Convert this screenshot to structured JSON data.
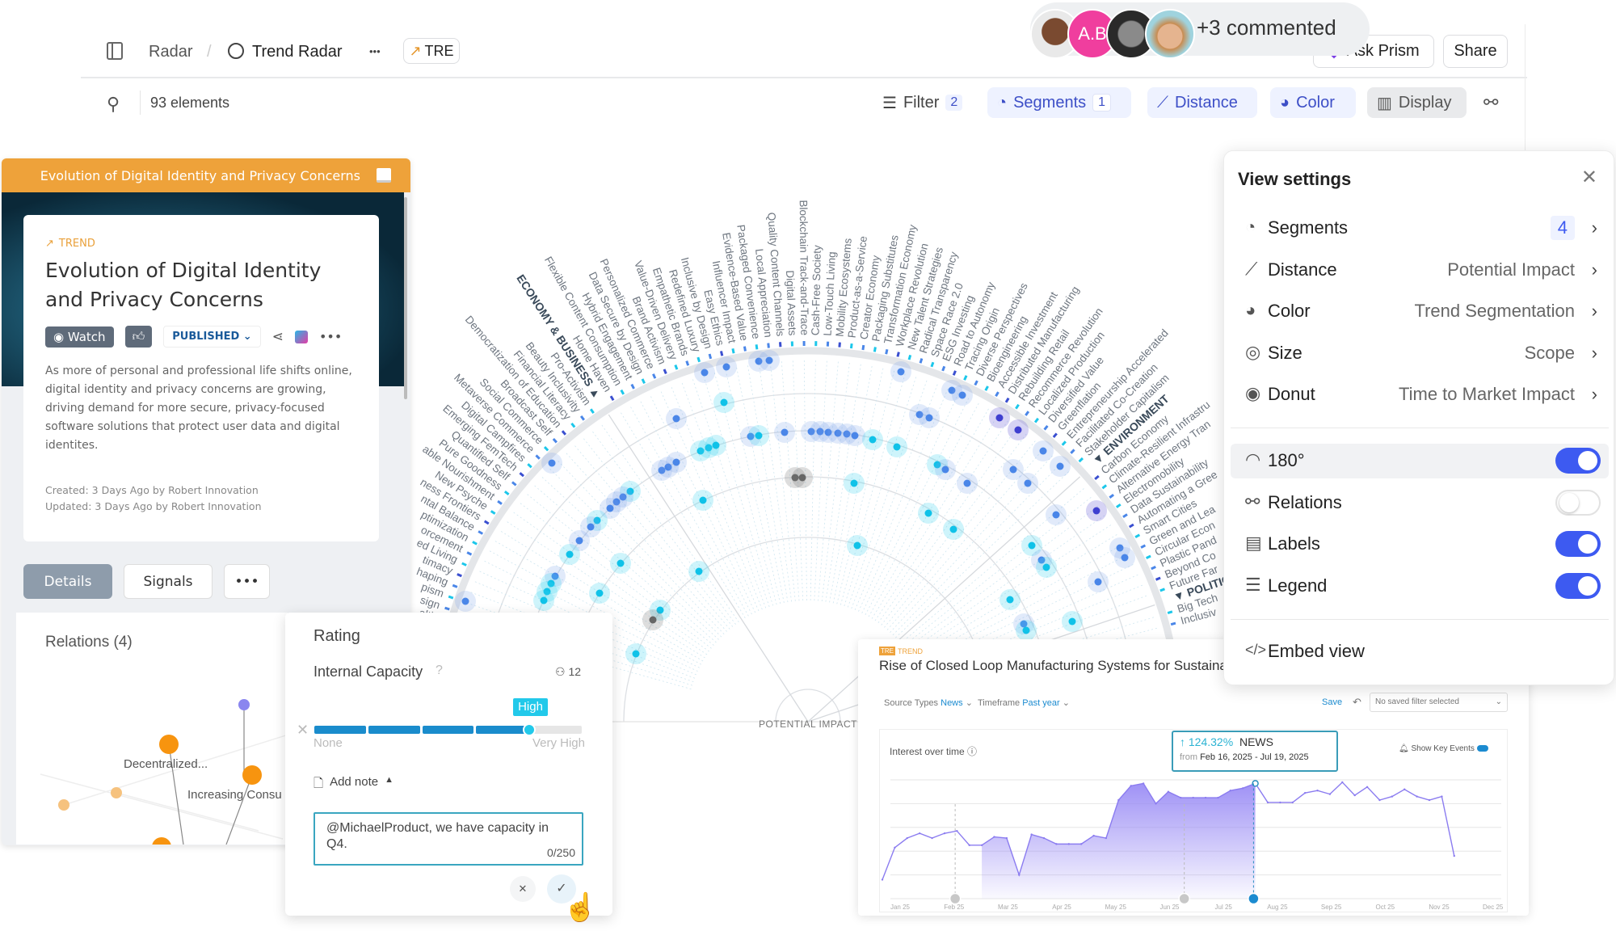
{
  "topbar": {
    "breadcrumb_root": "Radar",
    "separator": "/",
    "title": "Trend Radar",
    "more": "•••",
    "chip": "TRE",
    "avatar_initials": "A.B",
    "commented": "+3 commented",
    "ask_prism": "Ask Prism",
    "share": "Share"
  },
  "toolbar": {
    "count": "93 elements",
    "filter": "Filter",
    "filter_count": "2",
    "segments": "Segments",
    "segments_count": "1",
    "distance": "Distance",
    "color": "Color",
    "display": "Display"
  },
  "trend_card": {
    "header": "Evolution of Digital Identity and Privacy Concerns",
    "eyebrow": "TREND",
    "title": "Evolution of Digital Identity and Privacy Concerns",
    "watch": "Watch",
    "status": "PUBLISHED",
    "description": "As more of personal and professional life shifts online, digital identity and privacy concerns are growing, driving demand for more secure, privacy-focused software solutions that protect user data and digital identites.",
    "created": "Created: 3 Days Ago by Robert Innovation",
    "updated": "Updated: 3 Days Ago by Robert Innovation",
    "tabs": [
      "Details",
      "Signals",
      "•••"
    ]
  },
  "relations": {
    "title": "Relations (4)",
    "labels": [
      "Decentralized...",
      "Increasing Consu"
    ]
  },
  "rating": {
    "title": "Rating",
    "criterion": "Internal Capacity",
    "help": "?",
    "voters": "12",
    "level": "High",
    "level_index": 4,
    "levels_total": 5,
    "min_label": "None",
    "max_label": "Very High",
    "add_note": "Add note",
    "note": "@MichaelProduct, we have capacity in Q4.",
    "counter": "0/250"
  },
  "view_settings": {
    "title": "View settings",
    "rows": [
      {
        "label": "Segments",
        "value": "4",
        "icon": "pie-chart-icon"
      },
      {
        "label": "Distance",
        "value": "Potential Impact",
        "icon": "ruler-icon"
      },
      {
        "label": "Color",
        "value": "Trend Segmentation",
        "icon": "palette-icon"
      },
      {
        "label": "Size",
        "value": "Scope",
        "icon": "target-icon"
      },
      {
        "label": "Donut",
        "value": "Time to Market Impact",
        "icon": "donut-icon"
      }
    ],
    "toggles": [
      {
        "label": "180°",
        "on": true,
        "icon": "half-circle-icon"
      },
      {
        "label": "Relations",
        "on": false,
        "icon": "relations-icon"
      },
      {
        "label": "Labels",
        "on": true,
        "icon": "label-icon"
      },
      {
        "label": "Legend",
        "on": true,
        "icon": "list-icon"
      }
    ],
    "embed": "Embed view"
  },
  "radar": {
    "axis_label": "POTENTIAL IMPACT",
    "groups": [
      {
        "header": "",
        "trends": [
          "alth",
          "sign",
          "pism",
          "haping",
          "timacy",
          "ed Living",
          "orcement",
          "ptimization",
          "ntal Balance",
          "ness Frontiers",
          "New Psyche",
          "able Nourishment",
          "Pure Goodness",
          "Quantified Self",
          "Emerging FemTech",
          "Digital Campfires",
          "Metaverse Commerce",
          "Social Commerce",
          "Broadcast Self",
          "Democratization of Education",
          "Financial Literacy",
          "Beauty Inclusivity",
          "Pro-Activism"
        ]
      },
      {
        "header": "ECONOMY & BUSINESS",
        "trends": [
          "Home Haven",
          "Flexible Content Consumption",
          "Hybrid Engagement",
          "Data Secure by Design",
          "Personalized Commerce",
          "Brand Activism",
          "Value-Driven Delivery",
          "Empathetic Brands",
          "Redefined Luxury",
          "Inclusive by Design",
          "Easy Ethics",
          "Influencer Impact",
          "Evidence-Based Value",
          "Packaged Convenience",
          "Local Appreciation",
          "Quality Content Channels",
          "Digital Assets",
          "Blockchain Track-and-Trace",
          "Cash-Free Society",
          "Low-Touch Living",
          "Mobility Ecosystems",
          "Product-as-a-Service",
          "Creator Economy",
          "Packaging Substitutes",
          "Transformation Economy",
          "Workplace Revolution",
          "New Talent Strategies",
          "Radical Transparency",
          "Space Race 2.0",
          "ESG Investing",
          "Road to Autonomy",
          "Tracing Origin",
          "Diverse Perspectives",
          "Bioengineering",
          "Accessible Investment",
          "Distributed Manufacturing",
          "Rebuilding Retail",
          "Recommerce Revolution",
          "Localized Production",
          "Diversified Value",
          "Greenflation",
          "Entrepreneurship Accelerated",
          "Facilitated Co-Creation",
          "Stakeholder Capitalism"
        ]
      },
      {
        "header": "ENVIRONMENT",
        "trends": [
          "Carbon Economy",
          "Climate-Resilient Infrastru",
          "Alternative Energy Tran",
          "Electromobility",
          "Data Sustainability",
          "Automating a Gree",
          "Smart Cities",
          "Green and Lea",
          "Circular Econ",
          "Plastic Pand",
          "Beyond Co",
          "Future Far"
        ]
      },
      {
        "header": "POLITIC",
        "trends": [
          "Big Tech",
          "Inclusiv"
        ]
      }
    ]
  },
  "chart_card": {
    "badge": "TRE",
    "eyebrow": "TREND",
    "title": "Rise of Closed Loop Manufacturing Systems for Sustaina",
    "source_label": "Source Types",
    "source_value": "News",
    "timeframe_label": "Timeframe",
    "timeframe_value": "Past year",
    "save": "Save",
    "saved_filter": "No saved filter selected",
    "chart_title": "Interest over time",
    "tooltip_change": "124.32%",
    "tooltip_source": "NEWS",
    "tooltip_from": "from",
    "tooltip_range": "Feb 16, 2025 - Jul 19, 2025",
    "key_events": "Show Key Events"
  },
  "chart_data": {
    "type": "line",
    "title": "Interest over time",
    "x_tick_labels": [
      "Jan 25",
      "Feb 25",
      "Mar 25",
      "Apr 25",
      "May 25",
      "Jun 25",
      "Jul 25",
      "Aug 25",
      "Sep 25",
      "Oct 25",
      "Nov 25",
      "Dec 25"
    ],
    "x": [
      "2024-12-22",
      "2024-12-29",
      "2025-01-05",
      "2025-01-12",
      "2025-01-19",
      "2025-01-26",
      "2025-02-02",
      "2025-02-09",
      "2025-02-16",
      "2025-02-23",
      "2025-03-02",
      "2025-03-09",
      "2025-03-16",
      "2025-03-23",
      "2025-03-30",
      "2025-04-06",
      "2025-04-13",
      "2025-04-20",
      "2025-04-27",
      "2025-05-04",
      "2025-05-11",
      "2025-05-18",
      "2025-05-25",
      "2025-06-01",
      "2025-06-08",
      "2025-06-15",
      "2025-06-22",
      "2025-06-29",
      "2025-07-06",
      "2025-07-13",
      "2025-07-20",
      "2025-07-27",
      "2025-08-03",
      "2025-08-10",
      "2025-08-17",
      "2025-08-24",
      "2025-08-31",
      "2025-09-07",
      "2025-09-14",
      "2025-09-21",
      "2025-09-28",
      "2025-10-05",
      "2025-10-12",
      "2025-10-19",
      "2025-10-26",
      "2025-11-02",
      "2025-11-09"
    ],
    "values": [
      16,
      43,
      51,
      55,
      51,
      55,
      57,
      45,
      45,
      52,
      51,
      20,
      54,
      51,
      46,
      46,
      46,
      53,
      51,
      83,
      95,
      97,
      80,
      90,
      85,
      85,
      85,
      85,
      91,
      93,
      97,
      81,
      81,
      81,
      89,
      91,
      88,
      98,
      87,
      94,
      83,
      86,
      92,
      86,
      83,
      86,
      36
    ],
    "ylim": [
      0,
      100
    ],
    "grid": true,
    "highlight_range": [
      "2025-02-16",
      "2025-07-19"
    ],
    "key_events": [
      "2025-02-01",
      "2025-06-10",
      "2025-07-19"
    ],
    "colors": {
      "line": "#8b7cf0",
      "area": "#9a8cf5",
      "tooltip": "#1e9ab8"
    }
  },
  "colors": {
    "accent": "#3d5af1",
    "trend_orange": "#eea23a",
    "radar_cyan": "#1cc7ea",
    "radar_blue": "#4a86e8",
    "radar_purple": "#4b4fd8",
    "avatar_pink": "#f03e9e"
  }
}
